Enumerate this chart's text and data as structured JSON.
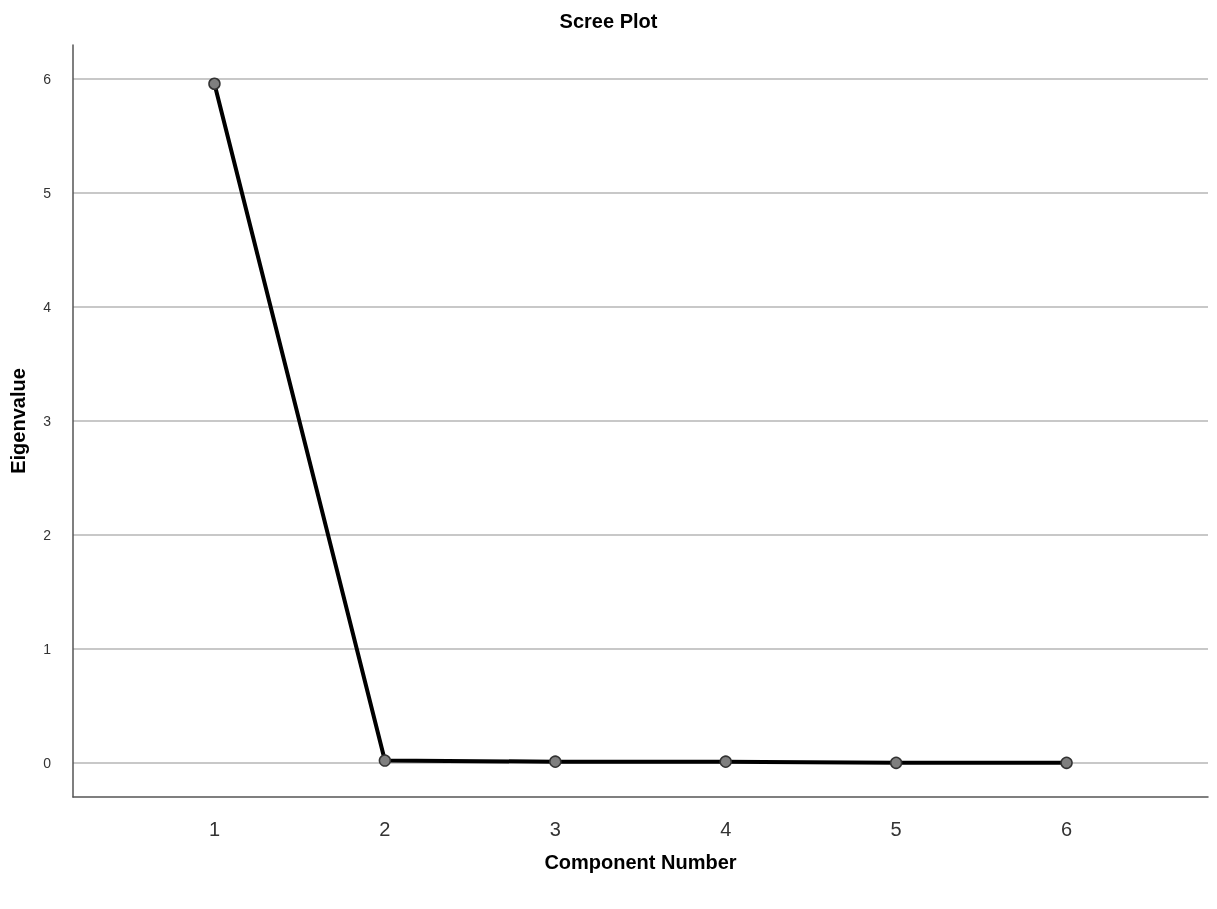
{
  "chart_data": {
    "type": "line",
    "title": "Scree Plot",
    "xlabel": "Component Number",
    "ylabel": "Eigenvalue",
    "x": [
      1,
      2,
      3,
      4,
      5,
      6
    ],
    "series": [
      {
        "color": "#000000",
        "values": [
          5.96,
          0.02,
          0.01,
          0.01,
          0,
          0
        ]
      }
    ],
    "xlim": [
      0.17,
      6.83
    ],
    "xticks": [
      1,
      2,
      3,
      4,
      5,
      6
    ],
    "ylim": [
      -0.3,
      6.3
    ],
    "yticks": [
      0,
      1,
      2,
      3,
      4,
      5,
      6
    ],
    "grid": "y",
    "marker": "circle",
    "line_style": "solid"
  }
}
